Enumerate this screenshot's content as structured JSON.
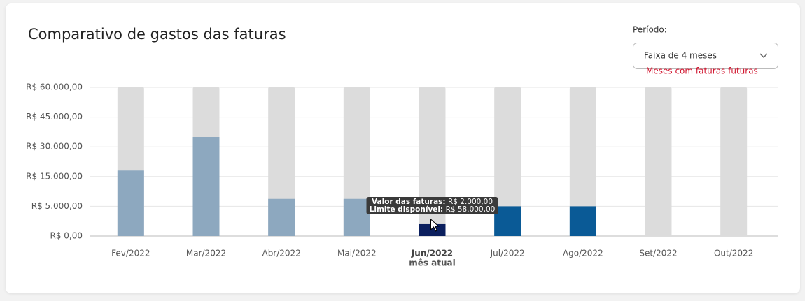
{
  "controls": {
    "period_label": "Período:",
    "period_value": "Faixa de 4 meses",
    "future_link": "Meses com faturas futuras"
  },
  "chart_data": {
    "type": "bar",
    "title": "Comparativo de gastos das faturas",
    "categories": [
      "Fev/2022",
      "Mar/2022",
      "Abr/2022",
      "Mai/2022",
      "Jun/2022",
      "Jul/2022",
      "Ago/2022",
      "Set/2022",
      "Out/2022"
    ],
    "values": [
      18000,
      35000,
      7500,
      7500,
      2000,
      5000,
      5000,
      0,
      0
    ],
    "colors": [
      "#8da8bf",
      "#8da8bf",
      "#8da8bf",
      "#8da8bf",
      "#0b1f5e",
      "#0a5a96",
      "#0a5a96",
      "#0a5a96",
      "#0a5a96"
    ],
    "track_color": "#dcdcdc",
    "ylim": [
      0,
      60000
    ],
    "yticks": [
      {
        "value": 0,
        "label": "R$ 0,00"
      },
      {
        "value": 5000,
        "label": "R$ 5.000,00"
      },
      {
        "value": 15000,
        "label": "R$ 15.000,00"
      },
      {
        "value": 30000,
        "label": "R$ 30.000,00"
      },
      {
        "value": 45000,
        "label": "R$ 45.000,00"
      },
      {
        "value": 60000,
        "label": "R$ 60.000,00"
      }
    ],
    "grid": true,
    "highlight": {
      "category": "Jun/2022",
      "note": "mês atual"
    },
    "tooltip": [
      {
        "label": "Valor das faturas:",
        "value": "R$ 2.000,00"
      },
      {
        "label": "Limite disponível:",
        "value": "R$ 58.000,00"
      }
    ]
  }
}
